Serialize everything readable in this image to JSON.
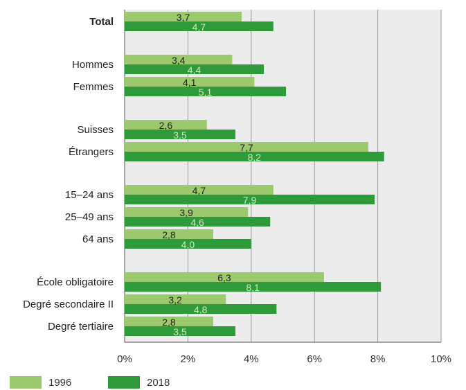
{
  "chart_data": {
    "type": "bar",
    "orientation": "horizontal",
    "categories": [
      "Total",
      "Hommes",
      "Femmes",
      "Suisses",
      "Étrangers",
      "15–24 ans",
      "25–49 ans",
      "64 ans",
      "École obligatoire",
      "Degré secondaire II",
      "Degré tertiaire"
    ],
    "groups": [
      [
        0
      ],
      [
        1,
        2
      ],
      [
        3,
        4
      ],
      [
        5,
        6,
        7
      ],
      [
        8,
        9,
        10
      ]
    ],
    "bold_categories": [
      0
    ],
    "series": [
      {
        "name": "1996",
        "color": "#9dc96e",
        "label_color": "#222222",
        "values": [
          3.7,
          3.4,
          4.1,
          2.6,
          7.7,
          4.7,
          3.9,
          2.8,
          6.3,
          3.2,
          2.8
        ],
        "labels": [
          "3,7",
          "3,4",
          "4,1",
          "2,6",
          "7,7",
          "4,7",
          "3,9",
          "2,8",
          "6,3",
          "3,2",
          "2,8"
        ]
      },
      {
        "name": "2018",
        "color": "#2f9a3a",
        "label_color": "#cfe8c0",
        "values": [
          4.7,
          4.4,
          5.1,
          3.5,
          8.2,
          7.9,
          4.6,
          4.0,
          8.1,
          4.8,
          3.5
        ],
        "labels": [
          "4,7",
          "4,4",
          "5,1",
          "3,5",
          "8,2",
          "7,9",
          "4,6",
          "4,0",
          "8,1",
          "4,8",
          "3,5"
        ]
      }
    ],
    "xlim": [
      0,
      10
    ],
    "xticks": [
      0,
      2,
      4,
      6,
      8,
      10
    ],
    "xtick_labels": [
      "0%",
      "2%",
      "4%",
      "6%",
      "8%",
      "10%"
    ],
    "grid": true,
    "plot_background": "#ececec",
    "legend_position": "bottom-left"
  }
}
